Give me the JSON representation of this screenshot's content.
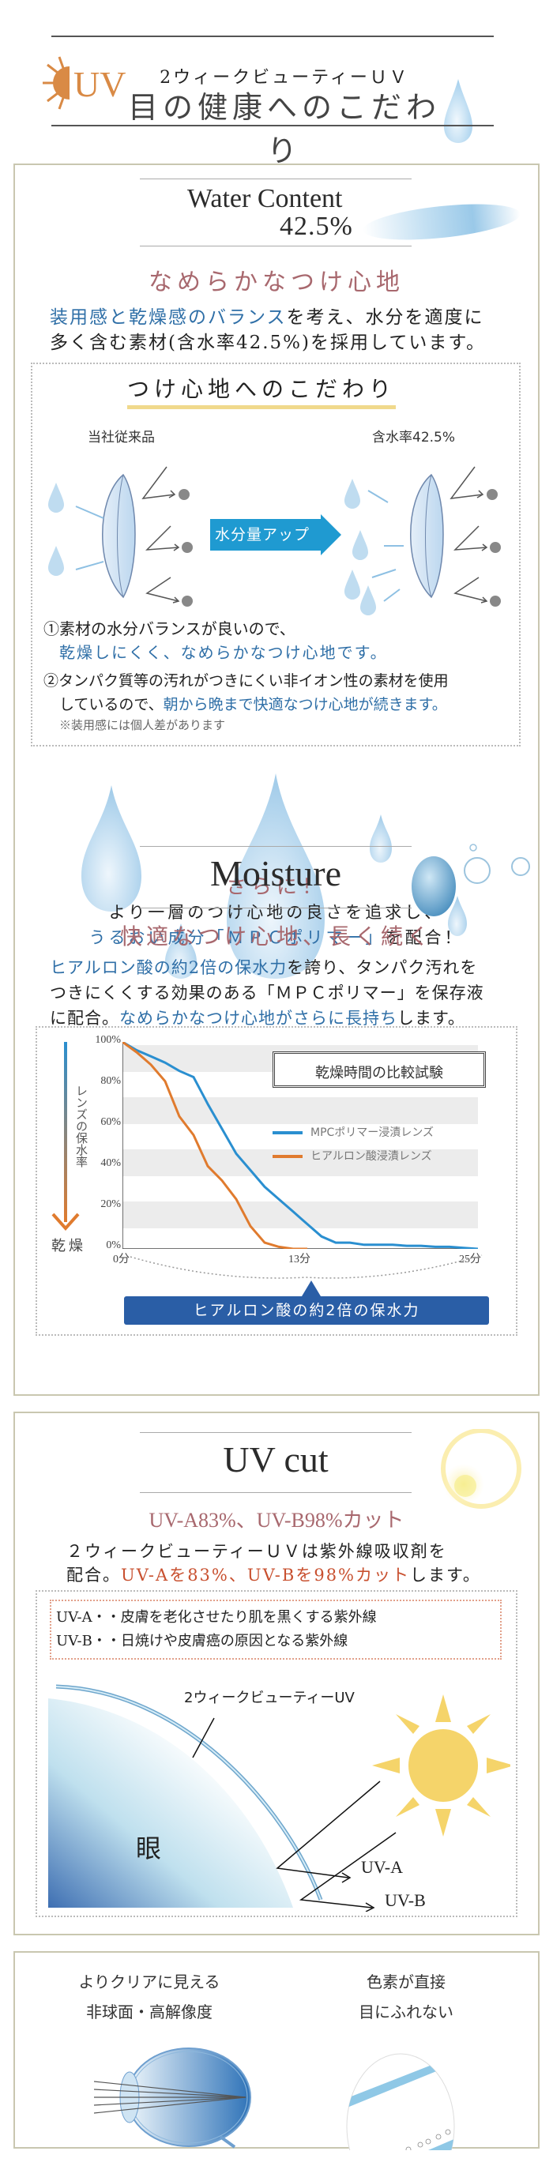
{
  "header": {
    "uv_logo": "UV",
    "product_name": "2ウィークビューティーＵＶ",
    "title": "目の健康へのこだわり"
  },
  "water": {
    "heading": "Water Content",
    "value": "42.5%",
    "subtitle": "なめらかなつけ心地",
    "body_highlight": "装用感と乾燥感のバランス",
    "body_rest1": "を考え、水分を適度に",
    "body_line2": "多く含む素材(含水率42.5%)を採用しています。",
    "box": {
      "title": "つけ心地へのこだわり",
      "left_label": "当社従来品",
      "right_label": "含水率42.5%",
      "arrow_label": "水分量アップ",
      "point1_a": "①素材の水分バランスが良いので、",
      "point1_b": "乾燥しにくく、なめらかなつけ心地です。",
      "point2_a": "②タンパク質等の汚れがつきにくい非イオン性の素材を使用",
      "point2_b_plain": "しているので、",
      "point2_b_highlight": "朝から晩まで快適なつけ心地が続きます。",
      "note": "※装用感には個人差があります"
    }
  },
  "further": {
    "title": "さらに！",
    "line1": "より一層のつけ心地の良さを追求し、",
    "line2_highlight": "うるおい成分「ＭＰＣポリマー」",
    "line2_rest": "を配合！"
  },
  "moisture": {
    "heading": "Moisture",
    "subtitle": "快適なつけ心地、長く続く",
    "body1_highlight": "ヒアルロン酸の約2倍の保水力",
    "body1_rest": "を誇り、タンパク汚れを",
    "body2": "つきにくくする効果のある「ＭＰＣポリマー」を保存液",
    "body3_plain": "に配合。",
    "body3_highlight": "なめらかなつけ心地がさらに長持ち",
    "body3_rest": "します。",
    "axis_vertical_label": "レンズの保水率",
    "axis_dry_label": "乾燥",
    "callout": "ヒアルロン酸の約2倍の保水力"
  },
  "chart_data": {
    "type": "line",
    "title": "乾燥時間の比較試験",
    "xlabel": "",
    "ylabel": "レンズの保水率",
    "x_ticks": [
      "0分",
      "13分",
      "25分"
    ],
    "y_ticks": [
      "100%",
      "80%",
      "60%",
      "40%",
      "20%",
      "0%"
    ],
    "ylim": [
      0,
      100
    ],
    "xlim": [
      0,
      25
    ],
    "grid": "alternating horizontal bands",
    "legend_position": "upper right",
    "series": [
      {
        "name": "MPCポリマー浸漬レンズ",
        "color": "#2a8fd0",
        "x": [
          0,
          1,
          2,
          3,
          4,
          5,
          6,
          7,
          8,
          9,
          10,
          11,
          12,
          13,
          14,
          15,
          16,
          17,
          18,
          19,
          20,
          21,
          22,
          23,
          24,
          25
        ],
        "y": [
          100,
          96,
          93,
          90,
          86,
          83,
          70,
          58,
          46,
          38,
          30,
          24,
          18,
          12,
          6,
          3,
          3,
          2,
          2,
          2,
          1.5,
          1.5,
          1,
          1,
          0.5,
          0
        ]
      },
      {
        "name": "ヒアルロン酸浸漬レンズ",
        "color": "#e07b2e",
        "x": [
          0,
          1,
          2,
          3,
          4,
          5,
          6,
          7,
          8,
          9,
          10,
          11,
          12,
          13
        ],
        "y": [
          100,
          95,
          89,
          81,
          64,
          55,
          40,
          33,
          24,
          11,
          3,
          1,
          0,
          0
        ]
      }
    ]
  },
  "uvcut": {
    "heading": "UV cut",
    "subtitle": "UV-A83%、UV-B98%カット",
    "body1": "２ウィークビューティーＵＶは紫外線吸収剤を",
    "body2_plain": "配合。",
    "body2_highlight": "UV-Aを83%、UV-Bを98%カット",
    "body2_rest": "します。",
    "def_uva": "UV-A・・皮膚を老化させたり肌を黒くする紫外線",
    "def_uvb": "UV-B・・日焼けや皮膚癌の原因となる紫外線",
    "diagram_lens_label": "2ウィークビューティーUV",
    "diagram_eye_label": "眼",
    "diagram_uva": "UV-A",
    "diagram_uvb": "UV-B"
  },
  "features": [
    {
      "line1": "よりクリアに見える",
      "line2": "非球面・高解像度"
    },
    {
      "line1": "色素が直接",
      "line2": "目にふれない"
    }
  ]
}
